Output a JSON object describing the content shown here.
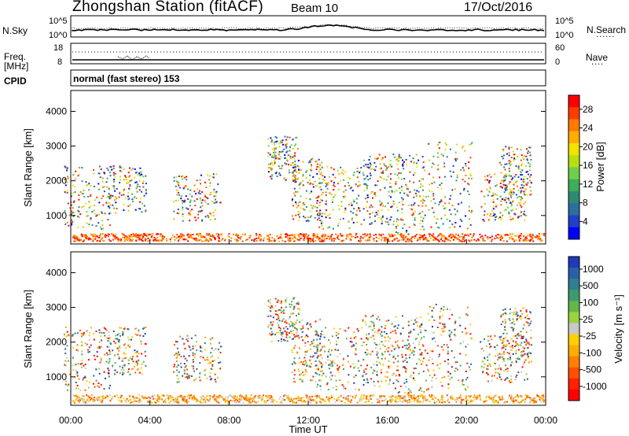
{
  "header": {
    "title": "Zhongshan Station (fitACF)",
    "beam": "Beam 10",
    "date": "17/Oct/2016"
  },
  "top_panels": {
    "nsky_label": "N.Sky",
    "nsky_ticks": [
      "10^5",
      "10^0"
    ],
    "nsearch_label": "N.Search",
    "nsearch_ticks": [
      "10^5",
      "10^0"
    ],
    "freq_label_1": "Freq.",
    "freq_label_2": "[MHz]",
    "freq_ticks": [
      "18",
      "8"
    ],
    "nave_label": "Nave",
    "nave_ticks": [
      "60",
      "0"
    ],
    "cpid_label": "CPID",
    "cpid_text": "normal (fast stereo) 153",
    "legend_dots": "......",
    "legend_dots_short": "...."
  },
  "chart_data": [
    {
      "type": "heatmap",
      "quantity": "Power",
      "ylabel": "Slant Range [km]",
      "xlabel": "",
      "ylim": [
        180,
        4600
      ],
      "yticks": [
        1000,
        2000,
        3000,
        4000
      ],
      "colorbar_label": "Power [dB]",
      "colorbar_ticks": [
        "28",
        "24",
        "20",
        "16",
        "12",
        "8",
        "4"
      ],
      "colorbar_colors": [
        "#ff0000",
        "#ff3c00",
        "#ff7a00",
        "#ffae00",
        "#f2e200",
        "#b8e010",
        "#6fcf4a",
        "#3fae5a",
        "#2d8a70",
        "#2c6e9e",
        "#2040c8",
        "#0000ff"
      ]
    },
    {
      "type": "heatmap",
      "quantity": "Velocity",
      "ylabel": "Slant Range [km]",
      "xlabel": "Time UT",
      "ylim": [
        180,
        4600
      ],
      "yticks": [
        1000,
        2000,
        3000,
        4000
      ],
      "xticks": [
        "00:00",
        "04:00",
        "08:00",
        "12:00",
        "16:00",
        "20:00",
        "00:00"
      ],
      "colorbar_label": "Velocity  [m s⁻¹]",
      "colorbar_ticks": [
        "1000",
        "500",
        "100",
        "25",
        "-25",
        "-100",
        "-500",
        "-1000"
      ],
      "colorbar_colors": [
        "#1f3ab8",
        "#2b5fa8",
        "#2f8090",
        "#3f9a70",
        "#62b64a",
        "#9ad240",
        "#c8c8c8",
        "#ffd000",
        "#ffae00",
        "#ff8000",
        "#ff5000",
        "#ff2000",
        "#ff0000"
      ]
    }
  ]
}
